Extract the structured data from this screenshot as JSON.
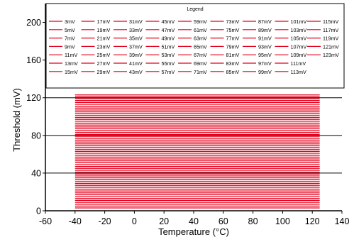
{
  "chart_data": {
    "type": "line",
    "title": "",
    "xlabel": "Temperature (°C)",
    "ylabel": "Threshold (mV)",
    "xlim": [
      -60,
      140
    ],
    "ylim": [
      0,
      220
    ],
    "xticks": [
      -60,
      -40,
      -20,
      0,
      20,
      40,
      60,
      80,
      100,
      120,
      140
    ],
    "yticks": [
      0,
      40,
      80,
      120,
      160,
      200
    ],
    "grid": "horizontal",
    "legend": {
      "title": "Legend",
      "placement": "top",
      "columns": 9
    },
    "line_color": "#e3001b",
    "x_range": [
      -40,
      125
    ],
    "series": [
      {
        "name": "3mV",
        "values": [
          3,
          3
        ]
      },
      {
        "name": "5mV",
        "values": [
          5,
          5
        ]
      },
      {
        "name": "7mV",
        "values": [
          7,
          7
        ]
      },
      {
        "name": "9mV",
        "values": [
          9,
          9
        ]
      },
      {
        "name": "11mV",
        "values": [
          11,
          11
        ]
      },
      {
        "name": "13mV",
        "values": [
          13,
          13
        ]
      },
      {
        "name": "15mV",
        "values": [
          15,
          15
        ]
      },
      {
        "name": "17mV",
        "values": [
          17,
          17
        ]
      },
      {
        "name": "19mV",
        "values": [
          19,
          19
        ]
      },
      {
        "name": "21mV",
        "values": [
          21,
          21
        ]
      },
      {
        "name": "23mV",
        "values": [
          23,
          23
        ]
      },
      {
        "name": "25mV",
        "values": [
          25,
          25
        ]
      },
      {
        "name": "27mV",
        "values": [
          27,
          27
        ]
      },
      {
        "name": "29mV",
        "values": [
          29,
          29
        ]
      },
      {
        "name": "31mV",
        "values": [
          31,
          31
        ]
      },
      {
        "name": "33mV",
        "values": [
          33,
          33
        ]
      },
      {
        "name": "35mV",
        "values": [
          35,
          35
        ]
      },
      {
        "name": "37mV",
        "values": [
          37,
          37
        ]
      },
      {
        "name": "39mV",
        "values": [
          39,
          39
        ]
      },
      {
        "name": "41mV",
        "values": [
          41,
          41
        ]
      },
      {
        "name": "43mV",
        "values": [
          43,
          43
        ]
      },
      {
        "name": "45mV",
        "values": [
          45,
          45
        ]
      },
      {
        "name": "47mV",
        "values": [
          47,
          47
        ]
      },
      {
        "name": "49mV",
        "values": [
          49,
          49
        ]
      },
      {
        "name": "51mV",
        "values": [
          51,
          51
        ]
      },
      {
        "name": "53mV",
        "values": [
          53,
          53
        ]
      },
      {
        "name": "55mV",
        "values": [
          55,
          55
        ]
      },
      {
        "name": "57mV",
        "values": [
          57,
          57
        ]
      },
      {
        "name": "59mV",
        "values": [
          59,
          59
        ]
      },
      {
        "name": "61mV",
        "values": [
          61,
          61
        ]
      },
      {
        "name": "63mV",
        "values": [
          63,
          63
        ]
      },
      {
        "name": "65mV",
        "values": [
          65,
          65
        ]
      },
      {
        "name": "67mV",
        "values": [
          67,
          67
        ]
      },
      {
        "name": "69mV",
        "values": [
          69,
          69
        ]
      },
      {
        "name": "71mV",
        "values": [
          71,
          71
        ]
      },
      {
        "name": "73mV",
        "values": [
          73,
          73
        ]
      },
      {
        "name": "75mV",
        "values": [
          75,
          75
        ]
      },
      {
        "name": "77mV",
        "values": [
          77,
          77
        ]
      },
      {
        "name": "79mV",
        "values": [
          79,
          79
        ]
      },
      {
        "name": "81mV",
        "values": [
          81,
          81
        ]
      },
      {
        "name": "83mV",
        "values": [
          83,
          83
        ]
      },
      {
        "name": "85mV",
        "values": [
          85,
          85
        ]
      },
      {
        "name": "87mV",
        "values": [
          87,
          87
        ]
      },
      {
        "name": "89mV",
        "values": [
          89,
          89
        ]
      },
      {
        "name": "91mV",
        "values": [
          91,
          91
        ]
      },
      {
        "name": "93mV",
        "values": [
          93,
          93
        ]
      },
      {
        "name": "95mV",
        "values": [
          95,
          95
        ]
      },
      {
        "name": "97mV",
        "values": [
          97,
          97
        ]
      },
      {
        "name": "99mV",
        "values": [
          99,
          99
        ]
      },
      {
        "name": "101mV",
        "values": [
          101,
          101
        ]
      },
      {
        "name": "103mV",
        "values": [
          103,
          103
        ]
      },
      {
        "name": "105mV",
        "values": [
          105,
          105
        ]
      },
      {
        "name": "107mV",
        "values": [
          107,
          107
        ]
      },
      {
        "name": "109mV",
        "values": [
          109,
          109
        ]
      },
      {
        "name": "111mV",
        "values": [
          111,
          111
        ]
      },
      {
        "name": "113mV",
        "values": [
          113,
          113
        ]
      },
      {
        "name": "115mV",
        "values": [
          115,
          115
        ]
      },
      {
        "name": "117mV",
        "values": [
          117,
          117
        ]
      },
      {
        "name": "119mV",
        "values": [
          119,
          119
        ]
      },
      {
        "name": "121mV",
        "values": [
          121,
          121
        ]
      },
      {
        "name": "123mV",
        "values": [
          123,
          123
        ]
      }
    ]
  }
}
